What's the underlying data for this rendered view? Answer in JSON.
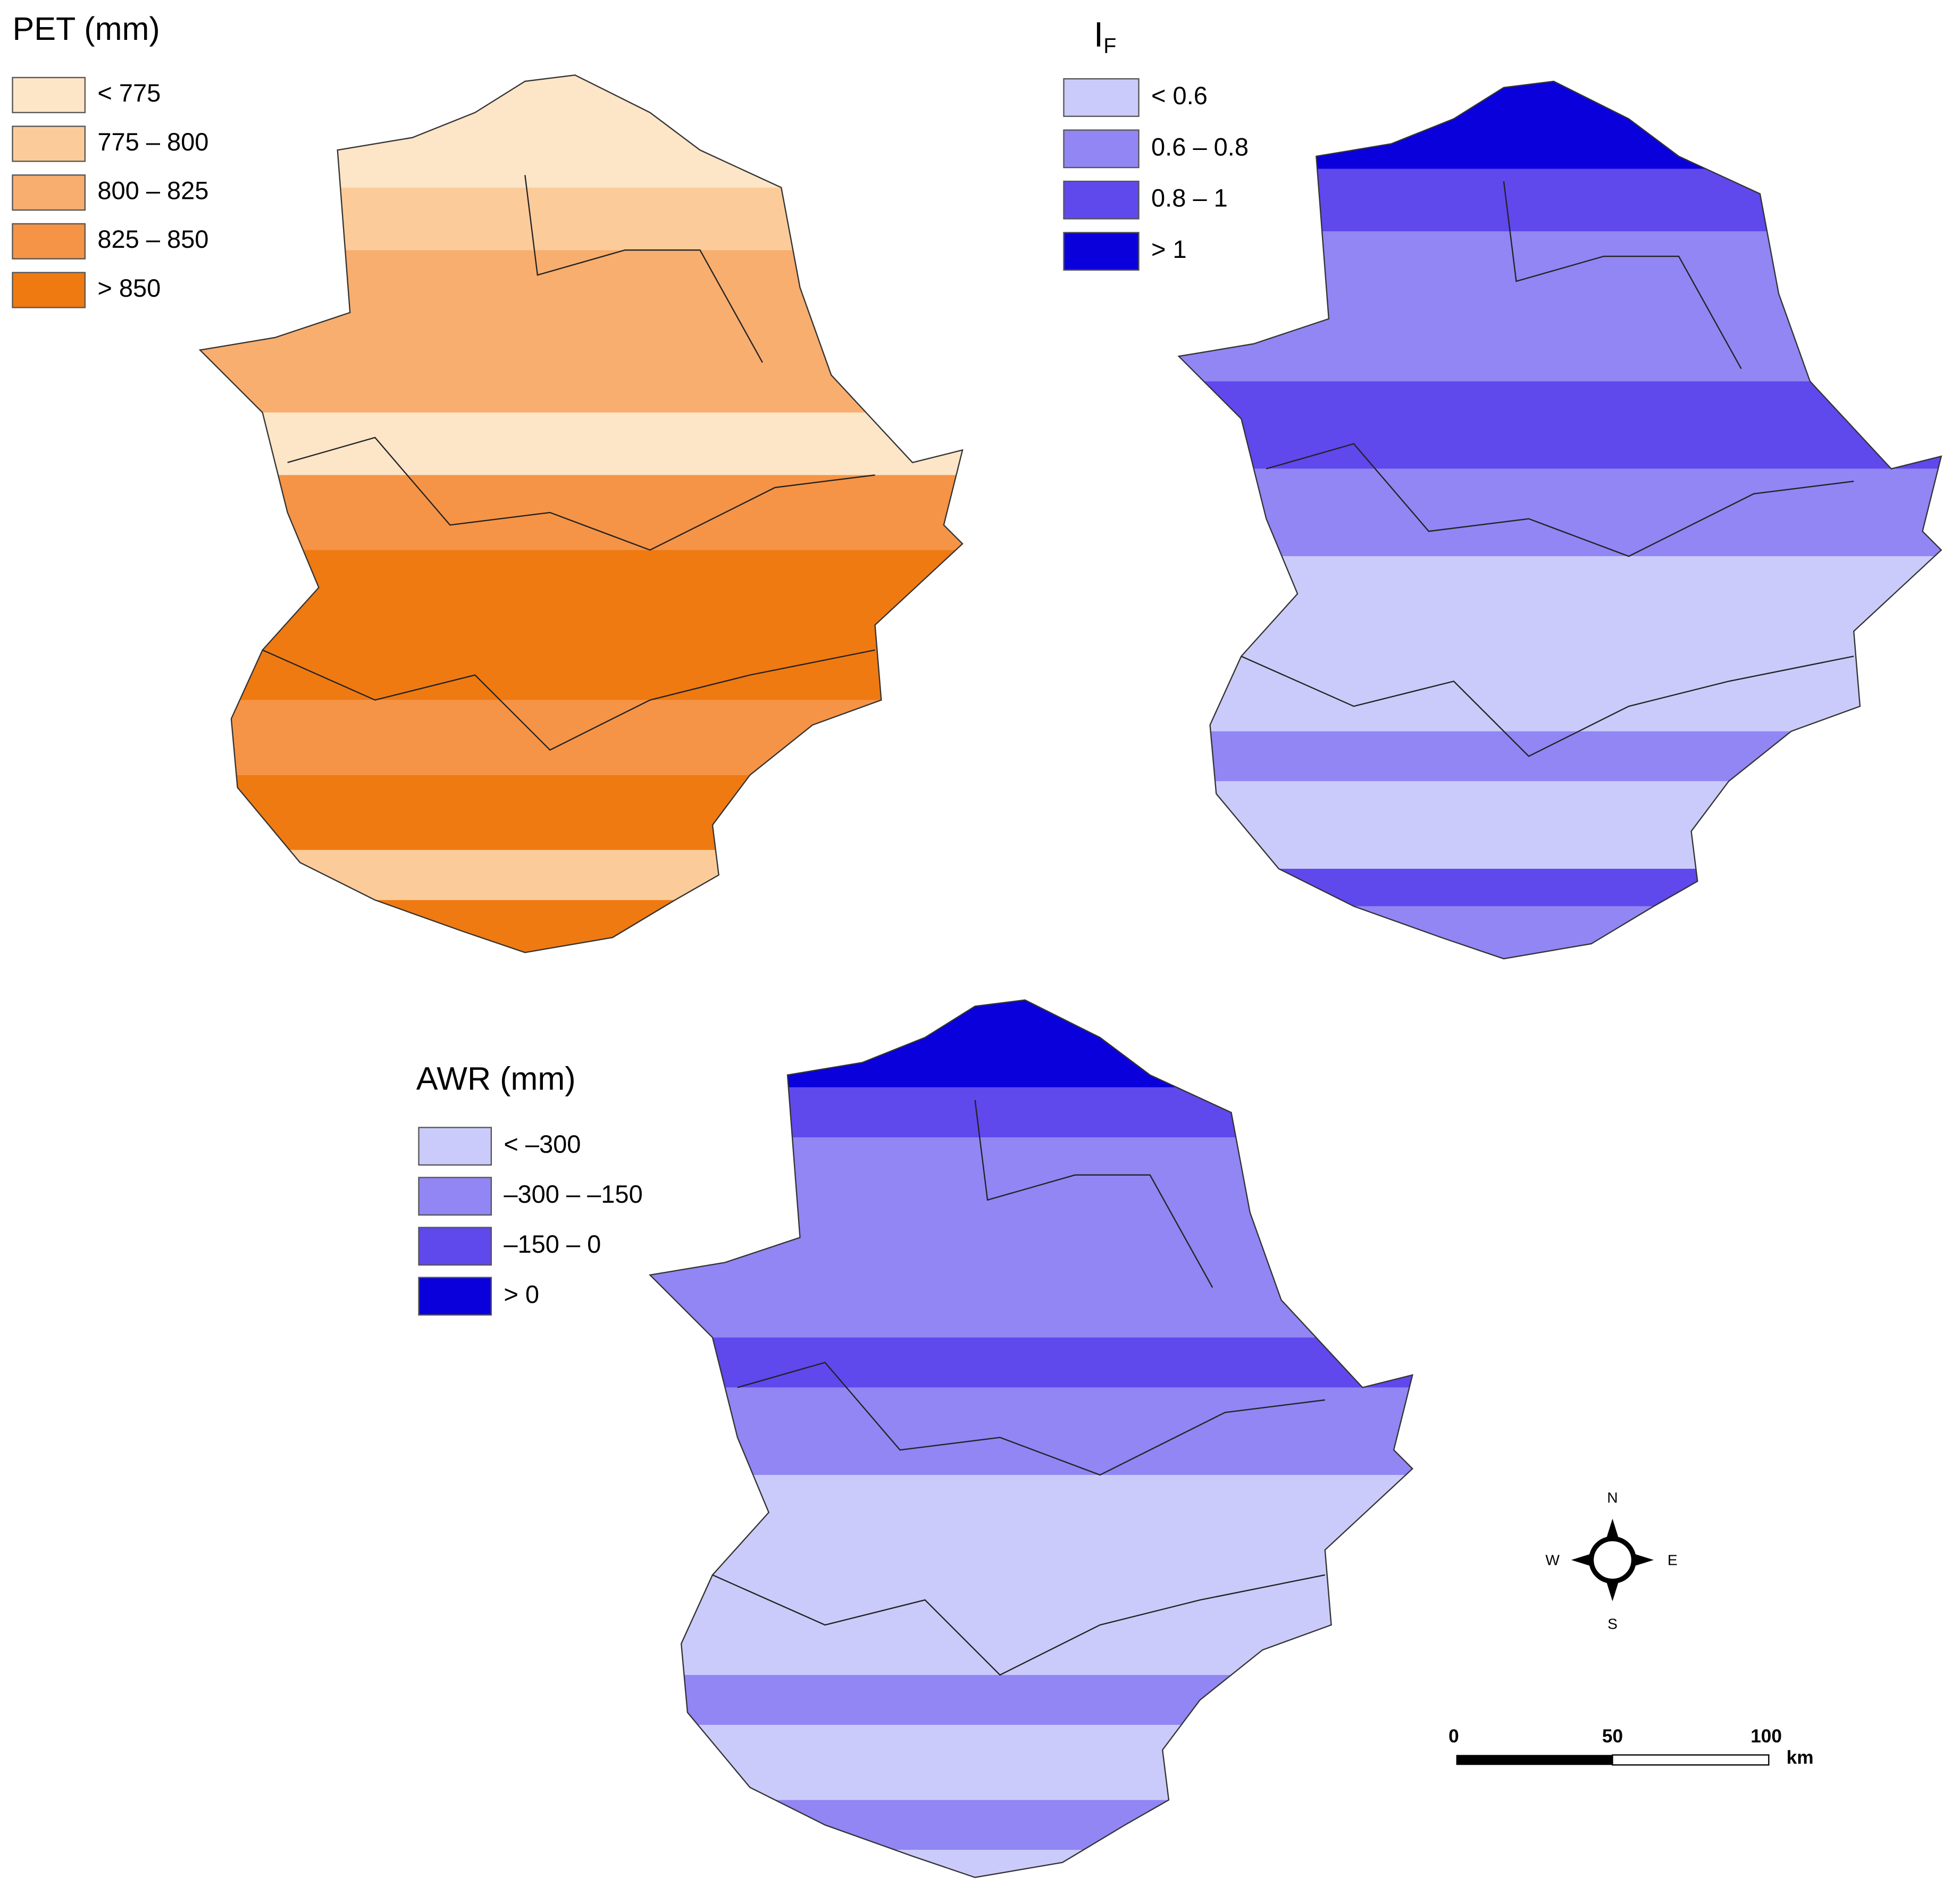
{
  "maps": [
    {
      "title": {
        "main": "PET (mm)"
      },
      "legend": [
        {
          "label": "< 775",
          "color": "#fde5c8"
        },
        {
          "label": "775 – 800",
          "color": "#fbcc9a"
        },
        {
          "label": "800 – 825",
          "color": "#f8ae6f"
        },
        {
          "label": "825 – 850",
          "color": "#f59446"
        },
        {
          "label": "> 850",
          "color": "#ef7a12"
        }
      ]
    },
    {
      "title": {
        "main": "I",
        "sub": "F"
      },
      "legend": [
        {
          "label": "< 0.6",
          "color": "#cbcbfb"
        },
        {
          "label": "0.6 – 0.8",
          "color": "#9186f3"
        },
        {
          "label": "0.8 – 1",
          "color": "#5f48ec"
        },
        {
          "label": "> 1",
          "color": "#0a00dc"
        }
      ]
    },
    {
      "title": {
        "main": "AWR (mm)"
      },
      "legend": [
        {
          "label": "< –300",
          "color": "#cbcbfb"
        },
        {
          "label": "–300 – –150",
          "color": "#9186f3"
        },
        {
          "label": "–150 – 0",
          "color": "#5f48ec"
        },
        {
          "label": "> 0",
          "color": "#0a00dc"
        }
      ]
    }
  ],
  "compass": {
    "n": "N",
    "s": "S",
    "w": "W",
    "e": "E"
  },
  "scale_bar": {
    "ticks": [
      "0",
      "50",
      "100"
    ],
    "unit": "km"
  }
}
